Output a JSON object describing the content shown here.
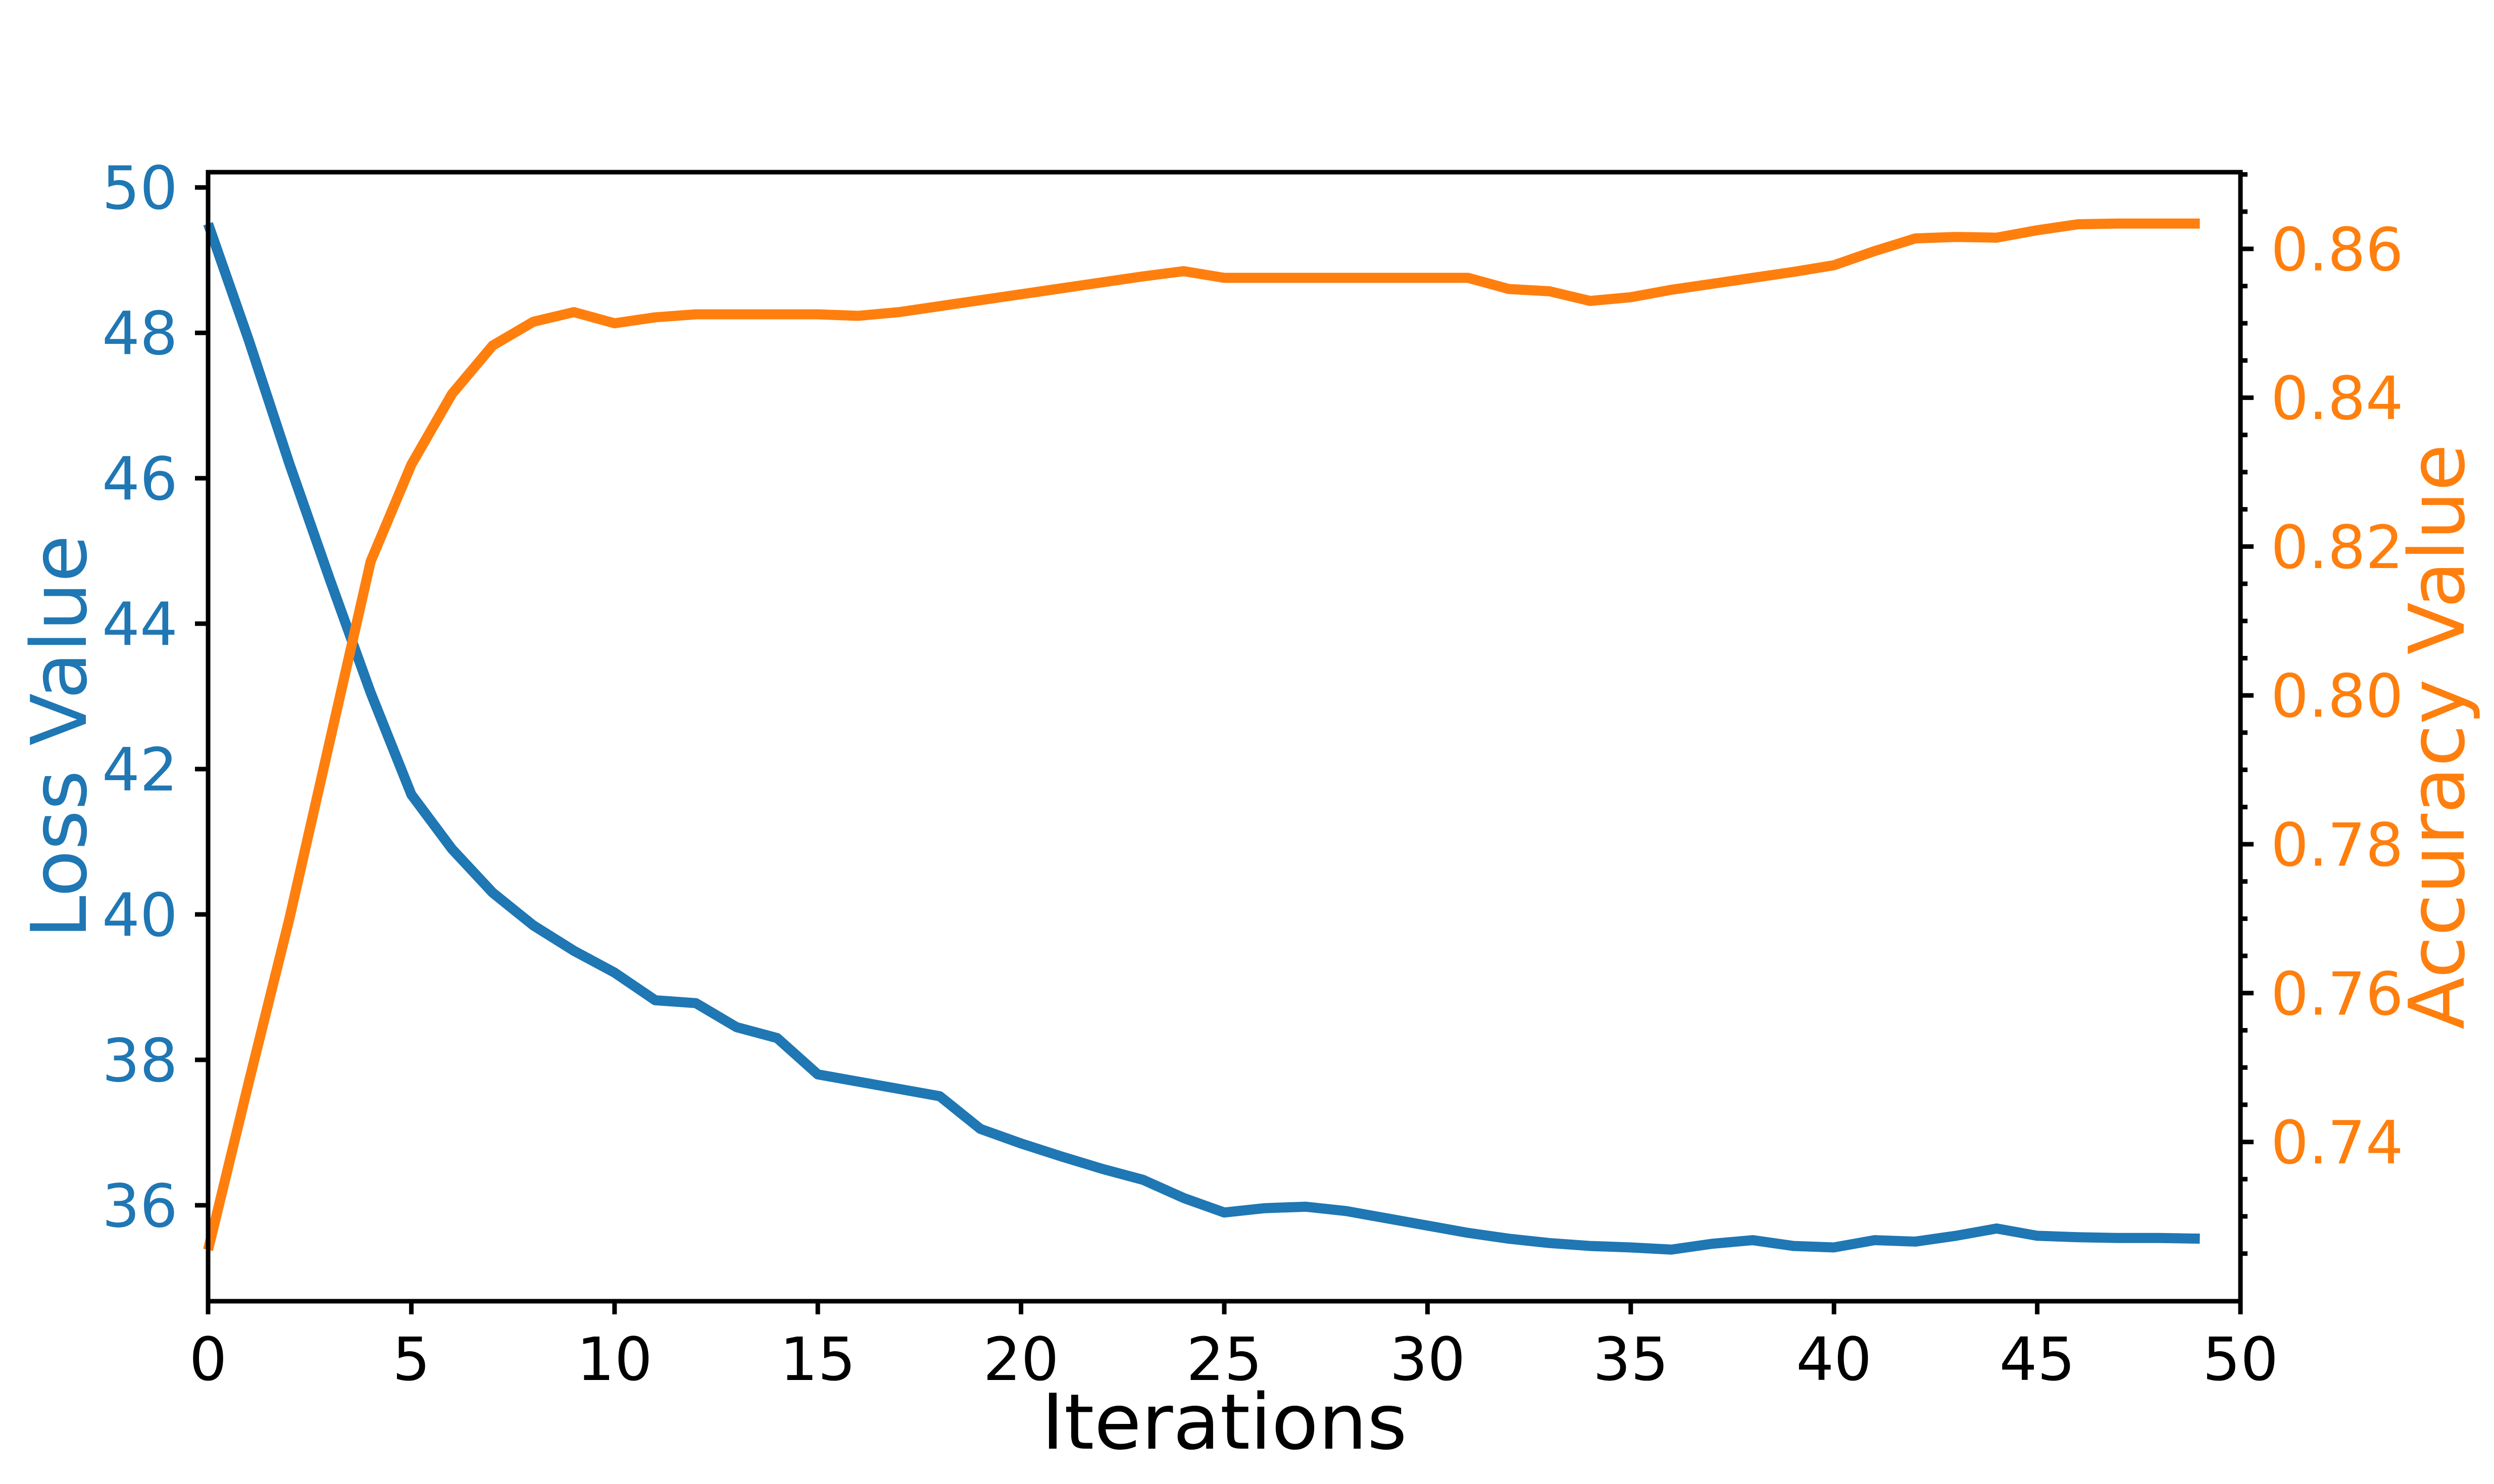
{
  "chart_data": {
    "type": "line",
    "title": "",
    "xlabel": "Iterations",
    "ylabel_left": "Loss Value",
    "ylabel_right": "Accuracy Value",
    "x": [
      0,
      1,
      2,
      3,
      4,
      5,
      6,
      7,
      8,
      9,
      10,
      11,
      12,
      13,
      14,
      15,
      16,
      17,
      18,
      19,
      20,
      21,
      22,
      23,
      24,
      25,
      26,
      27,
      28,
      29,
      30,
      31,
      32,
      33,
      34,
      35,
      36,
      37,
      38,
      39,
      40,
      41,
      42,
      43,
      44,
      45,
      46,
      47,
      48,
      49
    ],
    "series": [
      {
        "name": "Loss Value",
        "axis": "left",
        "color": "#1f77b4",
        "values": [
          49.5,
          47.9,
          46.2,
          44.6,
          43.05,
          41.65,
          40.9,
          40.3,
          39.85,
          39.5,
          39.2,
          38.82,
          38.78,
          38.45,
          38.3,
          37.8,
          37.7,
          37.6,
          37.5,
          37.05,
          36.85,
          36.67,
          36.5,
          36.35,
          36.1,
          35.9,
          35.96,
          35.98,
          35.92,
          35.82,
          35.72,
          35.62,
          35.54,
          35.48,
          35.44,
          35.42,
          35.39,
          35.47,
          35.52,
          35.44,
          35.42,
          35.52,
          35.5,
          35.58,
          35.68,
          35.58,
          35.56,
          35.55,
          35.55,
          35.54
        ]
      },
      {
        "name": "Accuracy Value",
        "axis": "right",
        "color": "#ff7f0e",
        "values": [
          0.7255,
          0.748,
          0.77,
          0.794,
          0.818,
          0.831,
          0.8405,
          0.847,
          0.8502,
          0.8515,
          0.85,
          0.8508,
          0.8512,
          0.8512,
          0.8512,
          0.8512,
          0.851,
          0.8515,
          0.8523,
          0.8531,
          0.8539,
          0.8547,
          0.8555,
          0.8563,
          0.857,
          0.8561,
          0.8561,
          0.8561,
          0.8561,
          0.8561,
          0.8561,
          0.8561,
          0.8546,
          0.8543,
          0.853,
          0.8535,
          0.8545,
          0.8553,
          0.8561,
          0.8569,
          0.8578,
          0.8597,
          0.8614,
          0.8616,
          0.8615,
          0.8625,
          0.8633,
          0.8634,
          0.8634,
          0.8634
        ]
      }
    ],
    "xlim": [
      0,
      50
    ],
    "ylim_left": [
      34.68,
      50.21
    ],
    "ylim_right": [
      0.7186,
      0.8703
    ],
    "x_ticks": [
      {
        "v": 0,
        "label": "0"
      },
      {
        "v": 5,
        "label": "5"
      },
      {
        "v": 10,
        "label": "10"
      },
      {
        "v": 15,
        "label": "15"
      },
      {
        "v": 20,
        "label": "20"
      },
      {
        "v": 25,
        "label": "25"
      },
      {
        "v": 30,
        "label": "30"
      },
      {
        "v": 35,
        "label": "35"
      },
      {
        "v": 40,
        "label": "40"
      },
      {
        "v": 45,
        "label": "45"
      },
      {
        "v": 50,
        "label": "50"
      }
    ],
    "y_ticks_left": [
      {
        "v": 36,
        "label": "36"
      },
      {
        "v": 38,
        "label": "38"
      },
      {
        "v": 40,
        "label": "40"
      },
      {
        "v": 42,
        "label": "42"
      },
      {
        "v": 44,
        "label": "44"
      },
      {
        "v": 46,
        "label": "46"
      },
      {
        "v": 48,
        "label": "48"
      },
      {
        "v": 50,
        "label": "50"
      }
    ],
    "y_ticks_right": [
      {
        "v": 0.74,
        "label": "0.74"
      },
      {
        "v": 0.76,
        "label": "0.76"
      },
      {
        "v": 0.78,
        "label": "0.78"
      },
      {
        "v": 0.8,
        "label": "0.80"
      },
      {
        "v": 0.82,
        "label": "0.82"
      },
      {
        "v": 0.84,
        "label": "0.84"
      },
      {
        "v": 0.86,
        "label": "0.86"
      }
    ],
    "y_minor_ticks_right": [
      0.725,
      0.73,
      0.735,
      0.745,
      0.75,
      0.755,
      0.765,
      0.77,
      0.775,
      0.785,
      0.79,
      0.795,
      0.805,
      0.81,
      0.815,
      0.825,
      0.83,
      0.835,
      0.845,
      0.85,
      0.855,
      0.865,
      0.87
    ],
    "grid": false,
    "legend": null,
    "colors": {
      "loss_line": "#1f77b4",
      "accuracy_line": "#ff7f0e",
      "left_tick_labels": "#1f77b4",
      "right_tick_labels": "#ff7f0e",
      "x_tick_labels": "#000000",
      "spines": "#000000",
      "background": "#ffffff"
    }
  }
}
